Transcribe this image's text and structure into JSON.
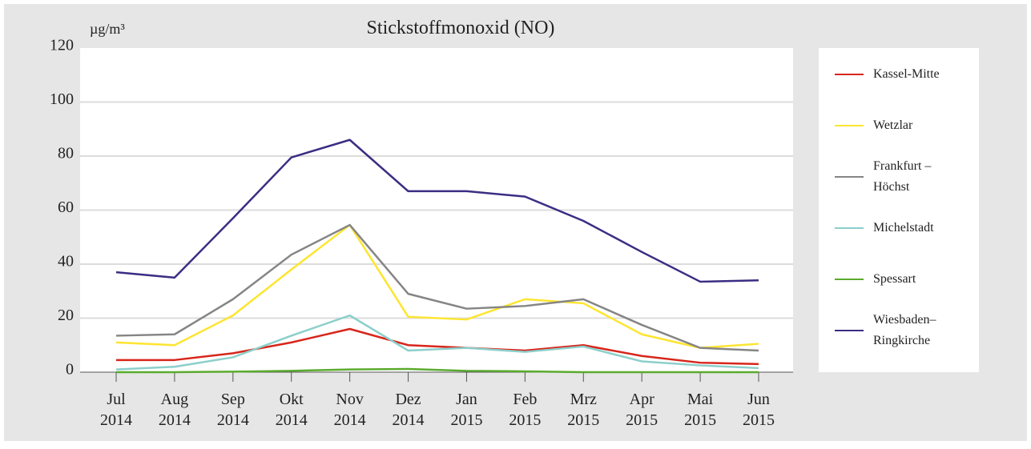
{
  "chart_data": {
    "type": "line",
    "title": "Stickstoffmonoxid (NO)",
    "y_label": "µg/m³",
    "categories": [
      "Jul 2014",
      "Aug 2014",
      "Sep 2014",
      "Okt 2014",
      "Nov 2014",
      "Dez 2014",
      "Jan 2015",
      "Feb 2015",
      "Mrz 2015",
      "Apr 2015",
      "Mai 2015",
      "Jun 2015"
    ],
    "series": [
      {
        "name": "Kassel-Mitte",
        "color": "#d7261b",
        "values": [
          4.5,
          4.5,
          7,
          11,
          16,
          10,
          9,
          8,
          10,
          6,
          3.5,
          3
        ]
      },
      {
        "name": "Wetzlar",
        "color": "#fde530",
        "values": [
          11,
          10,
          21,
          38,
          54.5,
          20.5,
          19.5,
          27,
          25.5,
          14,
          9,
          10.5
        ]
      },
      {
        "name": "Frankfurt – Höchst",
        "color": "#858585",
        "values": [
          13.5,
          14,
          27,
          43.5,
          54.5,
          29,
          23.5,
          24.5,
          27,
          17.5,
          9,
          8
        ]
      },
      {
        "name": "Michelstadt",
        "color": "#8ccfcb",
        "values": [
          1,
          2,
          5.5,
          13.5,
          21,
          8,
          9,
          7.5,
          9.5,
          4,
          2.5,
          1.5
        ]
      },
      {
        "name": "Spessart",
        "color": "#5aab2e",
        "values": [
          0,
          0,
          0.2,
          0.5,
          1,
          1.2,
          0.5,
          0.3,
          0,
          0,
          0,
          0
        ]
      },
      {
        "name": "Wiesbaden–Ringkirche",
        "color": "#3b2d83",
        "values": [
          37,
          35,
          57,
          79.5,
          86,
          67,
          67,
          65,
          56,
          44.5,
          33.5,
          34
        ]
      }
    ],
    "ylim": [
      0,
      120
    ],
    "yticks": [
      0,
      20,
      40,
      60,
      80,
      100,
      120
    ],
    "grid": true
  }
}
